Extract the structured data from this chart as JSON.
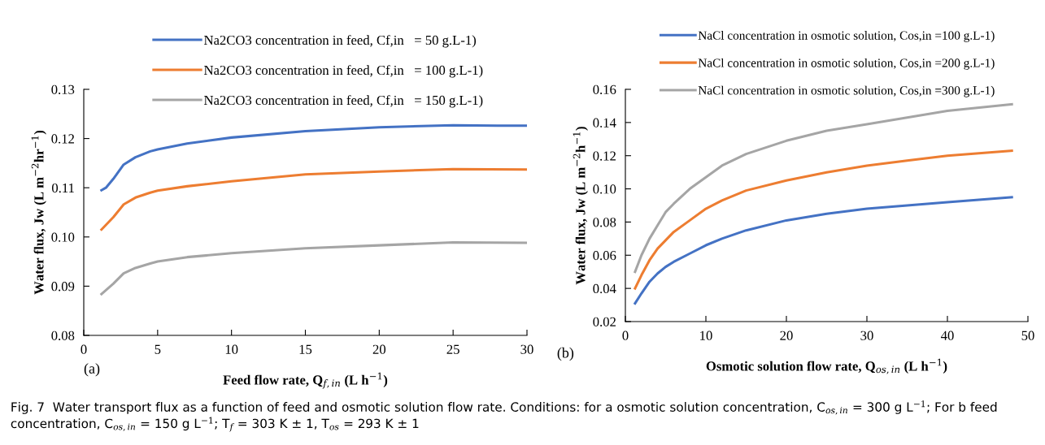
{
  "chart_data": [
    {
      "type": "line",
      "xlabel": "Feed flow rate, Q$_{f,in}$ (L h$^{−1}$)",
      "ylabel": "Water flux, Jw (L m$^{−2}$hr$^{−1}$)",
      "annotations": [
        "(a)",
        "Fig. 7  Water transport flux as a function of feed and osmotic solution flow rate. Conditions: for a osmotic solution concentration, C$_{os,in}$ = 300 g L$^{−1}$; For b feed concentration, C$_{os,in}$ = 150 g L$^{−1}$; T$_{f}$ = 303 K ± 1, T$_{os}$ = 293 K ± 1"
      ],
      "xlim": [
        0,
        30
      ],
      "xticks": [
        0,
        5,
        10,
        15,
        20,
        25,
        30
      ],
      "ylim": [
        0.08,
        0.13
      ],
      "yticks": [
        {
          "value": 0.08,
          "label": "0.08"
        },
        {
          "value": 0.09,
          "label": "0.09"
        },
        {
          "value": 0.1,
          "label": "0.10"
        },
        {
          "value": 0.11,
          "label": "0.11"
        },
        {
          "value": 0.12,
          "label": "0.12"
        },
        {
          "value": 0.13,
          "label": "0.13"
        }
      ],
      "grid": false,
      "legend": "top",
      "marker": "none",
      "line_style": "solid",
      "series": [
        {
          "name": "Na2CO3 concentration in feed, Cf,in   = 50 g.L-1)",
          "color": "#4472c4",
          "x": [
            1.2,
            1.5,
            2,
            2.7,
            3.5,
            4.5,
            5,
            7,
            10,
            15,
            20,
            25,
            28,
            30
          ],
          "values": [
            0.1095,
            0.11,
            0.1118,
            0.1147,
            0.1162,
            0.1174,
            0.1178,
            0.119,
            0.1202,
            0.1215,
            0.1223,
            0.1227,
            0.1226,
            0.1226
          ]
        },
        {
          "name": "Na2CO3 concentration in feed, Cf,in   = 100 g.L-1)",
          "color": "#ed7d31",
          "x": [
            1.2,
            2,
            2.7,
            3.5,
            4.5,
            5,
            7,
            10,
            15,
            20,
            25,
            30
          ],
          "values": [
            0.1015,
            0.104,
            0.1066,
            0.108,
            0.109,
            0.1094,
            0.1103,
            0.1113,
            0.1127,
            0.1133,
            0.1138,
            0.1137
          ]
        },
        {
          "name": "Na2CO3 concentration in feed, Cf,in   = 150 g.L-1)",
          "color": "#a5a5a5",
          "x": [
            1.2,
            2,
            2.7,
            3.5,
            4.5,
            5,
            7,
            10,
            15,
            20,
            25,
            30
          ],
          "values": [
            0.0884,
            0.0905,
            0.0926,
            0.0937,
            0.0946,
            0.095,
            0.0959,
            0.0967,
            0.0977,
            0.0983,
            0.0989,
            0.0988
          ]
        }
      ]
    },
    {
      "type": "line",
      "xlabel": "Osmotic solution flow rate, Q$_{os,in}$ (L h$^{−1}$)",
      "ylabel": "Water flux, Jw (L m$^{−2}$h$^{−1}$)",
      "annotations": [
        "(b)"
      ],
      "xlim": [
        0,
        50
      ],
      "xticks": [
        0,
        10,
        20,
        30,
        40,
        50
      ],
      "ylim": [
        0.02,
        0.16
      ],
      "yticks": [
        {
          "value": 0.02,
          "label": "0.02"
        },
        {
          "value": 0.04,
          "label": "0.04"
        },
        {
          "value": 0.06,
          "label": "0.06"
        },
        {
          "value": 0.08,
          "label": "0.08"
        },
        {
          "value": 0.1,
          "label": "0.10"
        },
        {
          "value": 0.12,
          "label": "0.12"
        },
        {
          "value": 0.14,
          "label": "0.14"
        },
        {
          "value": 0.16,
          "label": "0.16"
        }
      ],
      "grid": false,
      "legend": "top",
      "marker": "none",
      "line_style": "solid",
      "series": [
        {
          "name": "NaCl concentration in osmotic solution, Cos,in =100 g.L-1)",
          "color": "#4472c4",
          "x": [
            1.2,
            2,
            3,
            4,
            5,
            6,
            8,
            10,
            12,
            15,
            20,
            25,
            30,
            35,
            40,
            48
          ],
          "values": [
            0.031,
            0.037,
            0.044,
            0.049,
            0.053,
            0.056,
            0.061,
            0.066,
            0.07,
            0.075,
            0.081,
            0.085,
            0.088,
            0.09,
            0.092,
            0.095
          ]
        },
        {
          "name": "NaCl concentration in osmotic solution, Cos,in =200 g.L-1)",
          "color": "#ed7d31",
          "x": [
            1.2,
            2,
            3,
            4,
            5,
            6,
            8,
            10,
            12,
            15,
            20,
            25,
            30,
            35,
            40,
            48
          ],
          "values": [
            0.04,
            0.048,
            0.057,
            0.064,
            0.069,
            0.074,
            0.081,
            0.088,
            0.093,
            0.099,
            0.105,
            0.11,
            0.114,
            0.117,
            0.12,
            0.123
          ]
        },
        {
          "name": "NaCl concentration in osmotic solution, Cos,in =300 g.L-1)",
          "color": "#a5a5a5",
          "x": [
            1.2,
            2,
            3,
            4,
            5,
            6,
            8,
            10,
            12,
            15,
            20,
            25,
            30,
            35,
            40,
            48
          ],
          "values": [
            0.05,
            0.06,
            0.07,
            0.078,
            0.086,
            0.091,
            0.1,
            0.107,
            0.114,
            0.121,
            0.129,
            0.135,
            0.139,
            0.143,
            0.147,
            0.151
          ]
        }
      ]
    }
  ]
}
